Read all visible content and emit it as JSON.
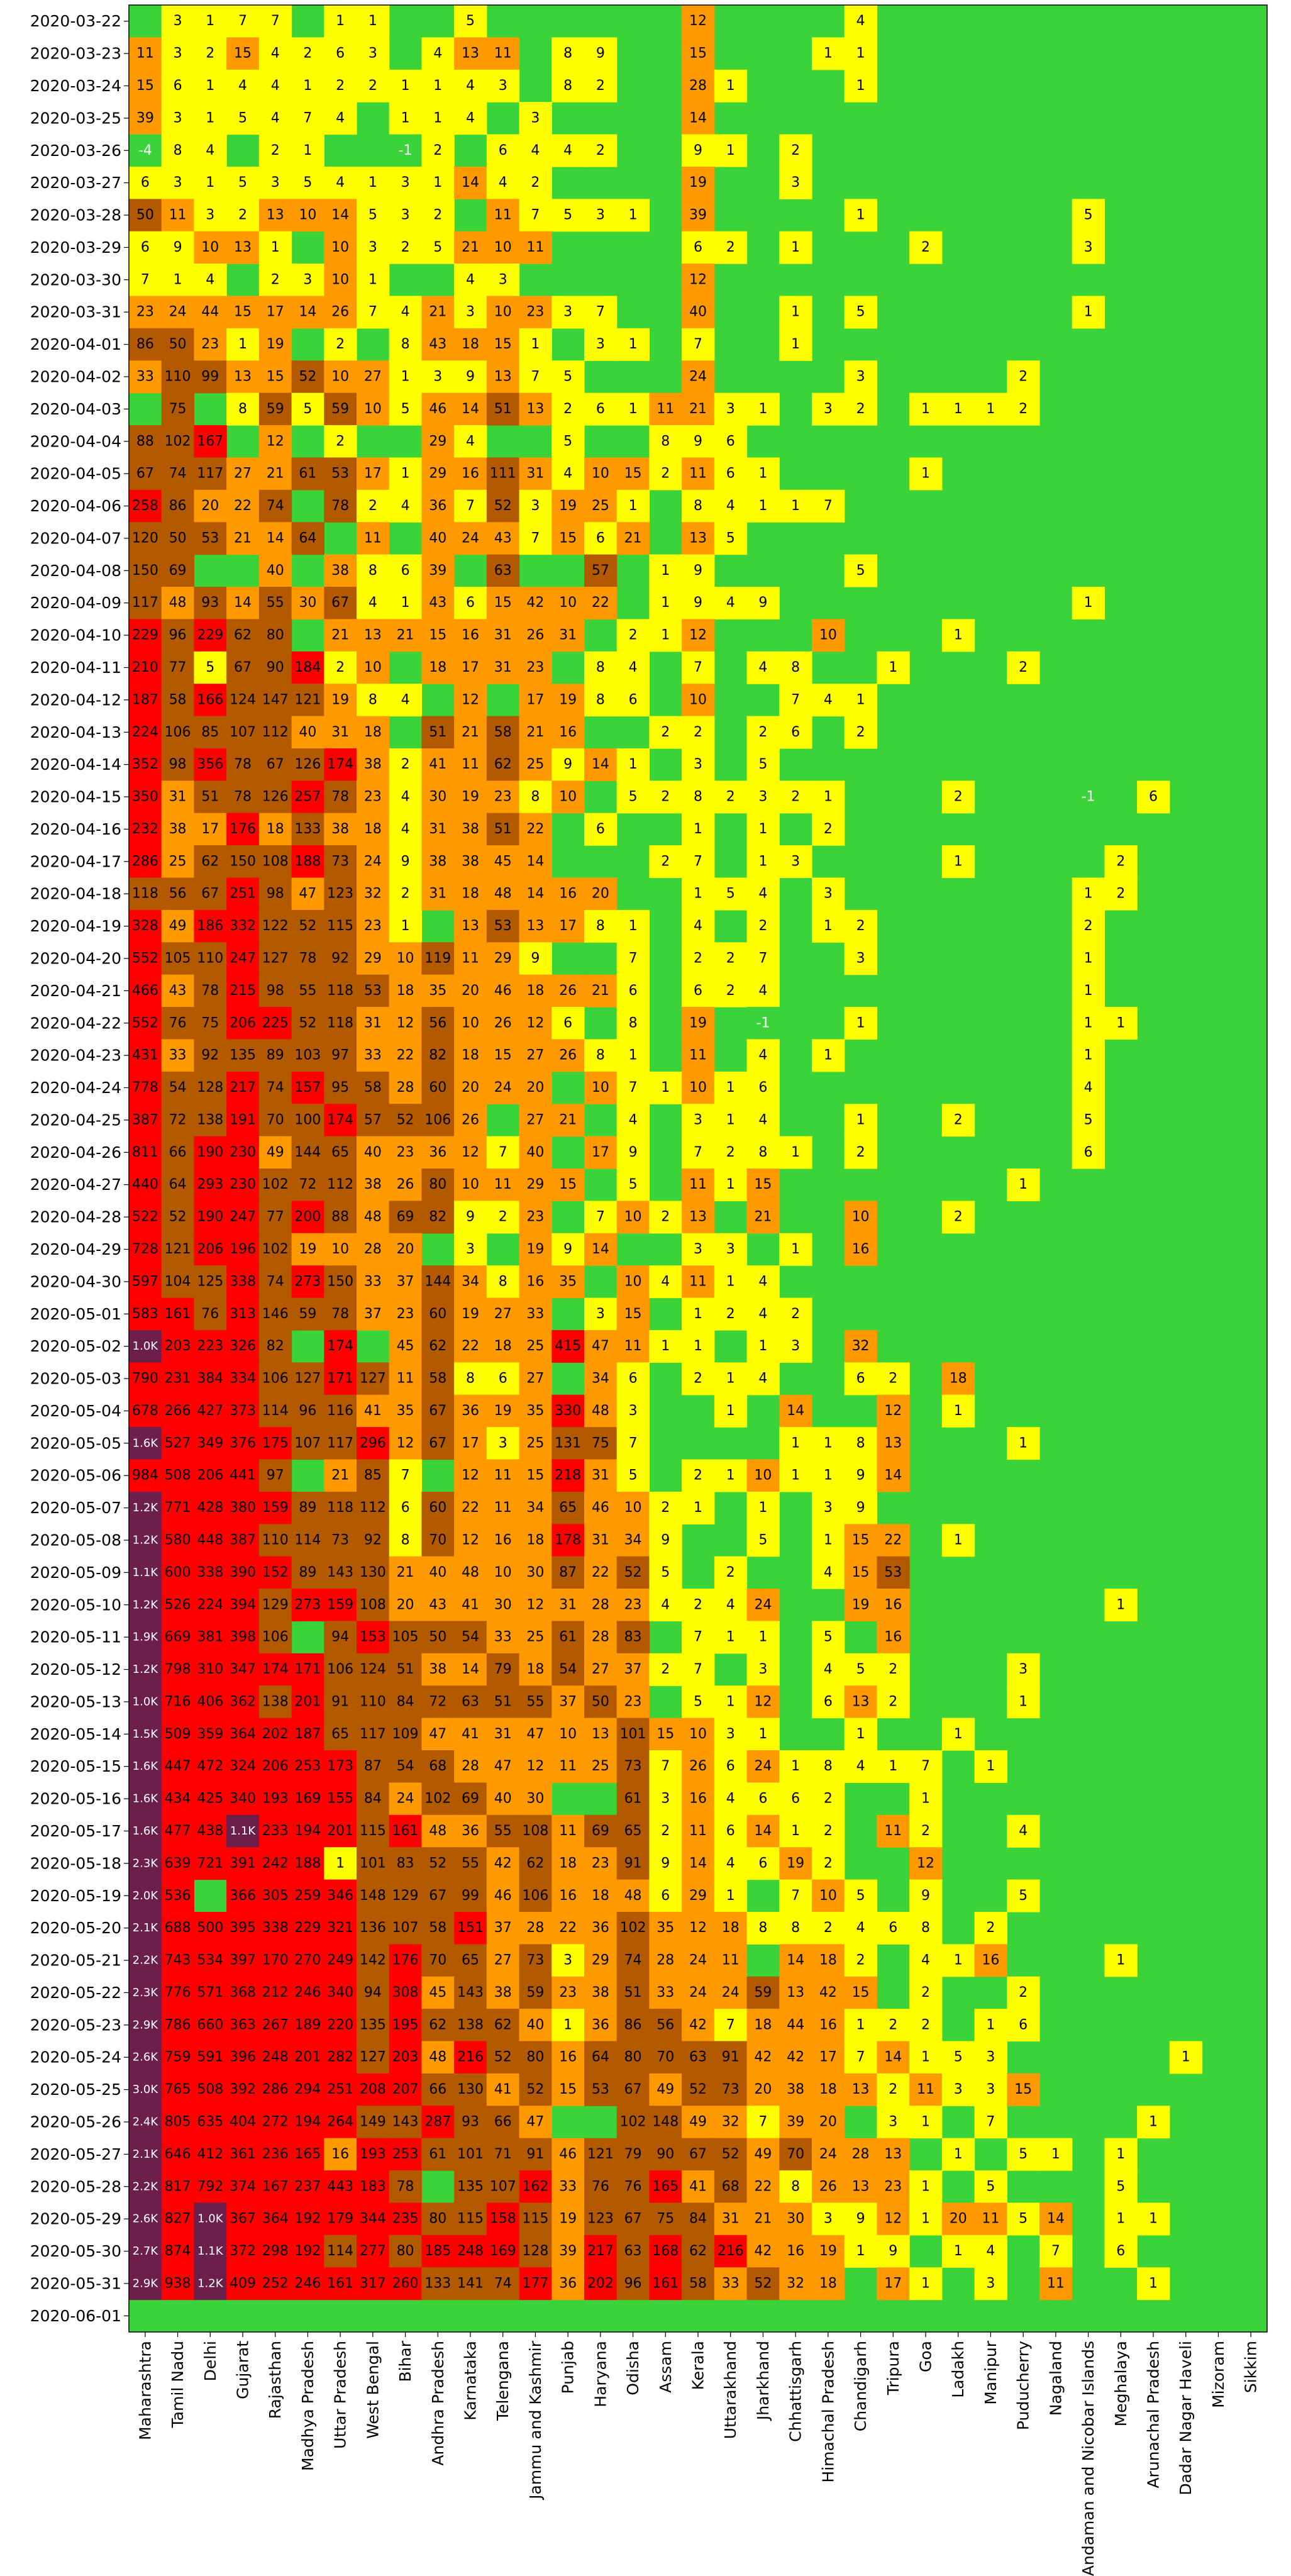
{
  "chart_data": {
    "type": "heatmap",
    "title": "",
    "xlabel": "",
    "ylabel": "",
    "note": "Daily new cases by state (cells colored by count; '-' = no reported value, shown as green background)",
    "color_scale": [
      {
        "max": 0,
        "color": "#3ad43a"
      },
      {
        "max": 9,
        "color": "#ffff00"
      },
      {
        "max": 49,
        "color": "#ff9900"
      },
      {
        "max": 150,
        "color": "#b35900"
      },
      {
        "max": 999,
        "color": "#ff0000"
      },
      {
        "max": 99999,
        "color": "#6b1f4a"
      }
    ],
    "states": [
      "Maharashtra",
      "Tamil Nadu",
      "Delhi",
      "Gujarat",
      "Rajasthan",
      "Madhya Pradesh",
      "Uttar Pradesh",
      "West Bengal",
      "Bihar",
      "Andhra Pradesh",
      "Karnataka",
      "Telengana",
      "Jammu and Kashmir",
      "Punjab",
      "Haryana",
      "Odisha",
      "Assam",
      "Kerala",
      "Uttarakhand",
      "Jharkhand",
      "Chhattisgarh",
      "Himachal Pradesh",
      "Chandigarh",
      "Tripura",
      "Goa",
      "Ladakh",
      "Manipur",
      "Puducherry",
      "Nagaland",
      "Andaman and Nicobar Islands",
      "Meghalaya",
      "Arunachal Pradesh",
      "Dadar Nagar Haveli",
      "Mizoram",
      "Sikkim"
    ],
    "dates": [
      "2020-03-22",
      "2020-03-23",
      "2020-03-24",
      "2020-03-25",
      "2020-03-26",
      "2020-03-27",
      "2020-03-28",
      "2020-03-29",
      "2020-03-30",
      "2020-03-31",
      "2020-04-01",
      "2020-04-02",
      "2020-04-03",
      "2020-04-04",
      "2020-04-05",
      "2020-04-06",
      "2020-04-07",
      "2020-04-08",
      "2020-04-09",
      "2020-04-10",
      "2020-04-11",
      "2020-04-12",
      "2020-04-13",
      "2020-04-14",
      "2020-04-15",
      "2020-04-16",
      "2020-04-17",
      "2020-04-18",
      "2020-04-19",
      "2020-04-20",
      "2020-04-21",
      "2020-04-22",
      "2020-04-23",
      "2020-04-24",
      "2020-04-25",
      "2020-04-26",
      "2020-04-27",
      "2020-04-28",
      "2020-04-29",
      "2020-04-30",
      "2020-05-01",
      "2020-05-02",
      "2020-05-03",
      "2020-05-04",
      "2020-05-05",
      "2020-05-06",
      "2020-05-07",
      "2020-05-08",
      "2020-05-09",
      "2020-05-10",
      "2020-05-11",
      "2020-05-12",
      "2020-05-13",
      "2020-05-14",
      "2020-05-15",
      "2020-05-16",
      "2020-05-17",
      "2020-05-18",
      "2020-05-19",
      "2020-05-20",
      "2020-05-21",
      "2020-05-22",
      "2020-05-23",
      "2020-05-24",
      "2020-05-25",
      "2020-05-26",
      "2020-05-27",
      "2020-05-28",
      "2020-05-29",
      "2020-05-30",
      "2020-05-31",
      "2020-06-01"
    ],
    "rows": [
      "-,3,1,7,7,-,1,1,-,-,5,-,-,-,-,-,-,12,-,-,-,-,4,-,-,-,-,-,-,-,-,-,-,-,-",
      "11,3,2,15,4,2,6,3,-,4,13,11,-,8,9,-,-,15,-,-,-,1,1,-,-,-,-,-,-,-,-,-,-,-,-",
      "15,6,1,4,4,1,2,2,1,1,4,3,-,8,2,-,-,28,1,-,-,-,1,-,-,-,-,-,-,-,-,-,-,-,-",
      "39,3,1,5,4,7,4,-,1,1,4,-,3,-,-,-,-,14,-,-,-,-,-,-,-,-,-,-,-,-,-,-,-,-,-",
      "-4,8,4,-,2,1,-,-,-1,2,-,6,4,4,2,-,-,9,1,-,2,-,-,-,-,-,-,-,-,-,-,-,-,-,-",
      "6,3,1,5,3,5,4,1,3,1,14,4,2,-,-,-,-,19,-,-,3,-,-,-,-,-,-,-,-,-,-,-,-,-,-",
      "50,11,3,2,13,10,14,5,3,2,-,11,7,5,3,1,-,39,-,-,-,-,1,-,-,-,-,-,-,5,-,-,-,-,-",
      "6,9,10,13,1,-,10,3,2,5,21,10,11,-,-,-,-,6,2,-,1,-,-,-,2,-,-,-,-,3,-,-,-,-,-",
      "7,1,4,-,2,3,10,1,-,-,4,3,-,-,-,-,-,12,-,-,-,-,-,-,-,-,-,-,-,-,-,-,-,-,-",
      "23,24,44,15,17,14,26,7,4,21,3,10,23,3,7,-,-,40,-,-,1,-,5,-,-,-,-,-,-,1,-,-,-,-,-",
      "86,50,23,1,19,-,2,-,8,43,18,15,1,-,3,1,-,7,-,-,1,-,-,-,-,-,-,-,-,-,-,-,-,-,-",
      "33,110,99,13,15,52,10,27,1,3,9,13,7,5,-,-,-,24,-,-,-,-,3,-,-,-,-,2,-,-,-,-,-,-,-",
      "-,75,-,8,59,5,59,10,5,46,14,51,13,2,6,1,11,21,3,1,-,3,2,-,1,1,1,2,-,-,-,-,-,-,-",
      "88,102,167,-,12,-,2,-,-,29,4,-,-,5,-,-,8,9,6,-,-,-,-,-,-,-,-,-,-,-,-,-,-,-,-",
      "67,74,117,27,21,61,53,17,1,29,16,111,31,4,10,15,2,11,6,1,-,-,-,-,1,-,-,-,-,-,-,-,-,-,-",
      "258,86,20,22,74,-,78,2,4,36,7,52,3,19,25,1,-,8,4,1,1,7,-,-,-,-,-,-,-,-,-,-,-,-,-",
      "120,50,53,21,14,64,-,11,-,40,24,43,7,15,6,21,-,13,5,-,-,-,-,-,-,-,-,-,-,-,-,-,-,-,-",
      "150,69,-,-,40,-,38,8,6,39,-,63,-,-,57,-,1,9,-,-,-,-,5,-,-,-,-,-,-,-,-,-,-,-,-",
      "117,48,93,14,55,30,67,4,1,43,6,15,42,10,22,-,1,9,4,9,-,-,-,-,-,-,-,-,-,1,-,-,-,-,-",
      "229,96,229,62,80,-,21,13,21,15,16,31,26,31,-,2,1,12,-,-,-,10,-,-,-,1,-,-,-,-,-,-,-,-,-",
      "210,77,5,67,90,184,2,10,-,18,17,31,23,-,8,4,-,7,-,4,8,-,-,1,-,-,-,2,-,-,-,-,-,-,-",
      "187,58,166,124,147,121,19,8,4,-,12,-,17,19,8,6,-,10,-,-,7,4,1,-,-,-,-,-,-,-,-,-,-,-,-",
      "224,106,85,107,112,40,31,18,-,51,21,58,21,16,-,-,2,2,-,2,6,-,2,-,-,-,-,-,-,-,-,-,-,-,-",
      "352,98,356,78,67,126,174,38,2,41,11,62,25,9,14,1,-,3,-,5,-,-,-,-,-,-,-,-,-,-,-,-,-,-,-",
      "350,31,51,78,126,257,78,23,4,30,19,23,8,10,-,5,2,8,2,3,2,1,-,-,-,2,-,-,-,-1,-,6,-,-,-",
      "232,38,17,176,18,133,38,18,4,31,38,51,22,-,6,-,-,1,-,1,-,2,-,-,-,-,-,-,-,-,-,-,-,-,-",
      "286,25,62,150,108,188,73,24,9,38,38,45,14,-,-,-,2,7,-,1,3,-,-,-,-,1,-,-,-,-,2,-,-,-,-",
      "118,56,67,251,98,47,123,32,2,31,18,48,14,16,20,-,-,1,5,4,-,3,-,-,-,-,-,-,-,1,2,-,-,-,-",
      "328,49,186,332,122,52,115,23,1,-,13,53,13,17,8,1,-,4,-,2,-,1,2,-,-,-,-,-,-,2,-,-,-,-,-",
      "552,105,110,247,127,78,92,29,10,119,11,29,9,-,-,7,-,2,2,7,-,-,3,-,-,-,-,-,-,1,-,-,-,-,-",
      "466,43,78,215,98,55,118,53,18,35,20,46,18,26,21,6,-,6,2,4,-,-,-,-,-,-,-,-,-,1,-,-,-,-,-",
      "552,76,75,206,225,52,118,31,12,56,10,26,12,6,-,8,-,19,-,-1,-,-,1,-,-,-,-,-,-,1,1,-,-,-,-",
      "431,33,92,135,89,103,97,33,22,82,18,15,27,26,8,1,-,11,-,4,-,1,-,-,-,-,-,-,-,1,-,-,-,-,-",
      "778,54,128,217,74,157,95,58,28,60,20,24,20,-,10,7,1,10,1,6,-,-,-,-,-,-,-,-,-,4,-,-,-,-,-",
      "387,72,138,191,70,100,174,57,52,106,26,-,27,21,-,4,-,3,1,4,-,-,1,-,-,2,-,-,-,5,-,-,-,-,-",
      "811,66,190,230,49,144,65,40,23,36,12,7,40,-,17,9,-,7,2,8,1,-,2,-,-,-,-,-,-,6,-,-,-,-,-",
      "440,64,293,230,102,72,112,38,26,80,10,11,29,15,-,5,-,11,1,15,-,-,-,-,-,-,-,1,-,-,-,-,-,-,-",
      "522,52,190,247,77,200,88,48,69,82,9,2,23,-,7,10,2,13,-,21,-,-,10,-,-,2,-,-,-,-,-,-,-,-,-",
      "728,121,206,196,102,19,10,28,20,-,3,-,19,9,14,-,-,3,3,-,1,-,16,-,-,-,-,-,-,-,-,-,-,-,-",
      "597,104,125,338,74,273,150,33,37,144,34,8,16,35,-,10,4,11,1,4,-,-,-,-,-,-,-,-,-,-,-,-,-,-,-",
      "583,161,76,313,146,59,78,37,23,60,19,27,33,-,3,15,-,1,2,4,2,-,-,-,-,-,-,-,-,-,-,-,-,-,-",
      "1.0K,203,223,326,82,-,174,-,45,62,22,18,25,415,47,11,1,1,-,1,3,-,32,-,-,-,-,-,-,-,-,-,-,-,-",
      "790,231,384,334,106,127,171,127,11,58,8,6,27,-,34,6,-,2,1,4,-,-,6,2,-,18,-,-,-,-,-,-,-,-,-",
      "678,266,427,373,114,96,116,41,35,67,36,19,35,330,48,3,-,-,1,-,14,-,-,12,-,1,-,-,-,-,-,-,-,-,-",
      "1.6K,527,349,376,175,107,117,296,12,67,17,3,25,131,75,7,-,-,-,-,1,1,8,13,-,-,-,1,-,-,-,-,-,-,-",
      "984,508,206,441,97,-,21,85,7,-,12,11,15,218,31,5,-,2,1,10,1,1,9,14,-,-,-,-,-,-,-,-,-,-,-",
      "1.2K,771,428,380,159,89,118,112,6,60,22,11,34,65,46,10,2,1,-,1,-,3,9,-,-,-,-,-,-,-,-,-,-,-,-",
      "1.2K,580,448,387,110,114,73,92,8,70,12,16,18,178,31,34,9,-,-,5,-,1,15,22,-,1,-,-,-,-,-,-,-,-,-",
      "1.1K,600,338,390,152,89,143,130,21,40,48,10,30,87,22,52,5,-,2,-,-,4,15,53,-,-,-,-,-,-,-,-,-,-,-",
      "1.2K,526,224,394,129,273,159,108,20,43,41,30,12,31,28,23,4,2,4,24,-,-,19,16,-,-,-,-,-,-,1,-,-,-,-",
      "1.9K,669,381,398,106,-,94,153,105,50,54,33,25,61,28,83,-,7,1,1,-,5,-,16,-,-,-,-,-,-,-,-,-,-,-",
      "1.2K,798,310,347,174,171,106,124,51,38,14,79,18,54,27,37,2,7,-,3,-,4,5,2,-,-,-,3,-,-,-,-,-,-,-",
      "1.0K,716,406,362,138,201,91,110,84,72,63,51,55,37,50,23,-,5,1,12,-,6,13,2,-,-,-,1,-,-,-,-,-,-,-",
      "1.5K,509,359,364,202,187,65,117,109,47,41,31,47,10,13,101,15,10,3,1,-,-,1,-,-,1,-,-,-,-,-,-,-,-,-",
      "1.6K,447,472,324,206,253,173,87,54,68,28,47,12,11,25,73,7,26,6,24,1,8,4,1,7,-,1,-,-,-,-,-,-,-,-",
      "1.6K,434,425,340,193,169,155,84,24,102,69,40,30,-,-,61,3,16,4,6,6,2,-,-,1,-,-,-,-,-,-,-,-,-,-",
      "1.6K,477,438,1.1K,233,194,201,115,161,48,36,55,108,11,69,65,2,11,6,14,1,2,-,11,2,-,-,4,-,-,-,-,-,-,-",
      "2.3K,639,721,391,242,188,1,101,83,52,55,42,62,18,23,91,9,14,4,6,19,2,-,-,12,-,-,-,-,-,-,-,-,-,-",
      "2.0K,536,-,366,305,259,346,148,129,67,99,46,106,16,18,48,6,29,1,-,7,10,5,-,9,-,-,5,-,-,-,-,-,-,-",
      "2.1K,688,500,395,338,229,321,136,107,58,151,37,28,22,36,102,35,12,18,8,8,2,4,6,8,-,2,-,-,-,-,-,-,-,-",
      "2.2K,743,534,397,170,270,249,142,176,70,65,27,73,3,29,74,28,24,11,-,14,18,2,-,4,1,16,-,-,-,1,-,-,-,-",
      "2.3K,776,571,368,212,246,340,94,308,45,143,38,59,23,38,51,33,24,24,59,13,42,15,-,2,-,-,2,-,-,-,-,-,-,-",
      "2.9K,786,660,363,267,189,220,135,195,62,138,62,40,1,36,86,56,42,7,18,44,16,1,2,2,-,1,6,-,-,-,-,-,-,-",
      "2.6K,759,591,396,248,201,282,127,203,48,216,52,80,16,64,80,70,63,91,42,42,17,7,14,1,5,3,-,-,-,-,-,1,-,-",
      "3.0K,765,508,392,286,294,251,208,207,66,130,41,52,15,53,67,49,52,73,20,38,18,13,2,11,3,3,15,-,-,-,-,-,-,-",
      "2.4K,805,635,404,272,194,264,149,143,287,93,66,47,-,-,102,148,49,32,7,39,20,-,3,1,-,7,-,-,-,-,1,-,-,-",
      "2.1K,646,412,361,236,165,16,193,253,61,101,71,91,46,121,79,90,67,52,49,70,24,28,13,-,1,-,5,1,-,1,-,-,-,-",
      "2.2K,817,792,374,167,237,443,183,78,-,135,107,162,33,76,76,165,41,68,22,8,26,13,23,1,-,5,-,-,-,5,-,-,-,-",
      "2.6K,827,1.0K,367,364,192,179,344,235,80,115,158,115,19,123,67,75,84,31,21,30,3,9,12,1,20,11,5,14,-,1,1,-,-,-",
      "2.7K,874,1.1K,372,298,192,114,277,80,185,248,169,128,39,217,63,168,62,216,42,16,19,1,9,-,1,4,-,7,-,6,-,-,-,-",
      "2.9K,938,1.2K,409,252,246,161,317,260,133,141,74,177,36,202,96,161,58,33,52,32,18,-,17,1,-,3,-,11,-,-,1,-,-,-",
      "-,-,-,-,-,-,-,-,-,-,-,-,-,-,-,-,-,-,-,-,-,-,-,-,-,-,-,-,-,-,-,-,-,-,-"
    ]
  }
}
